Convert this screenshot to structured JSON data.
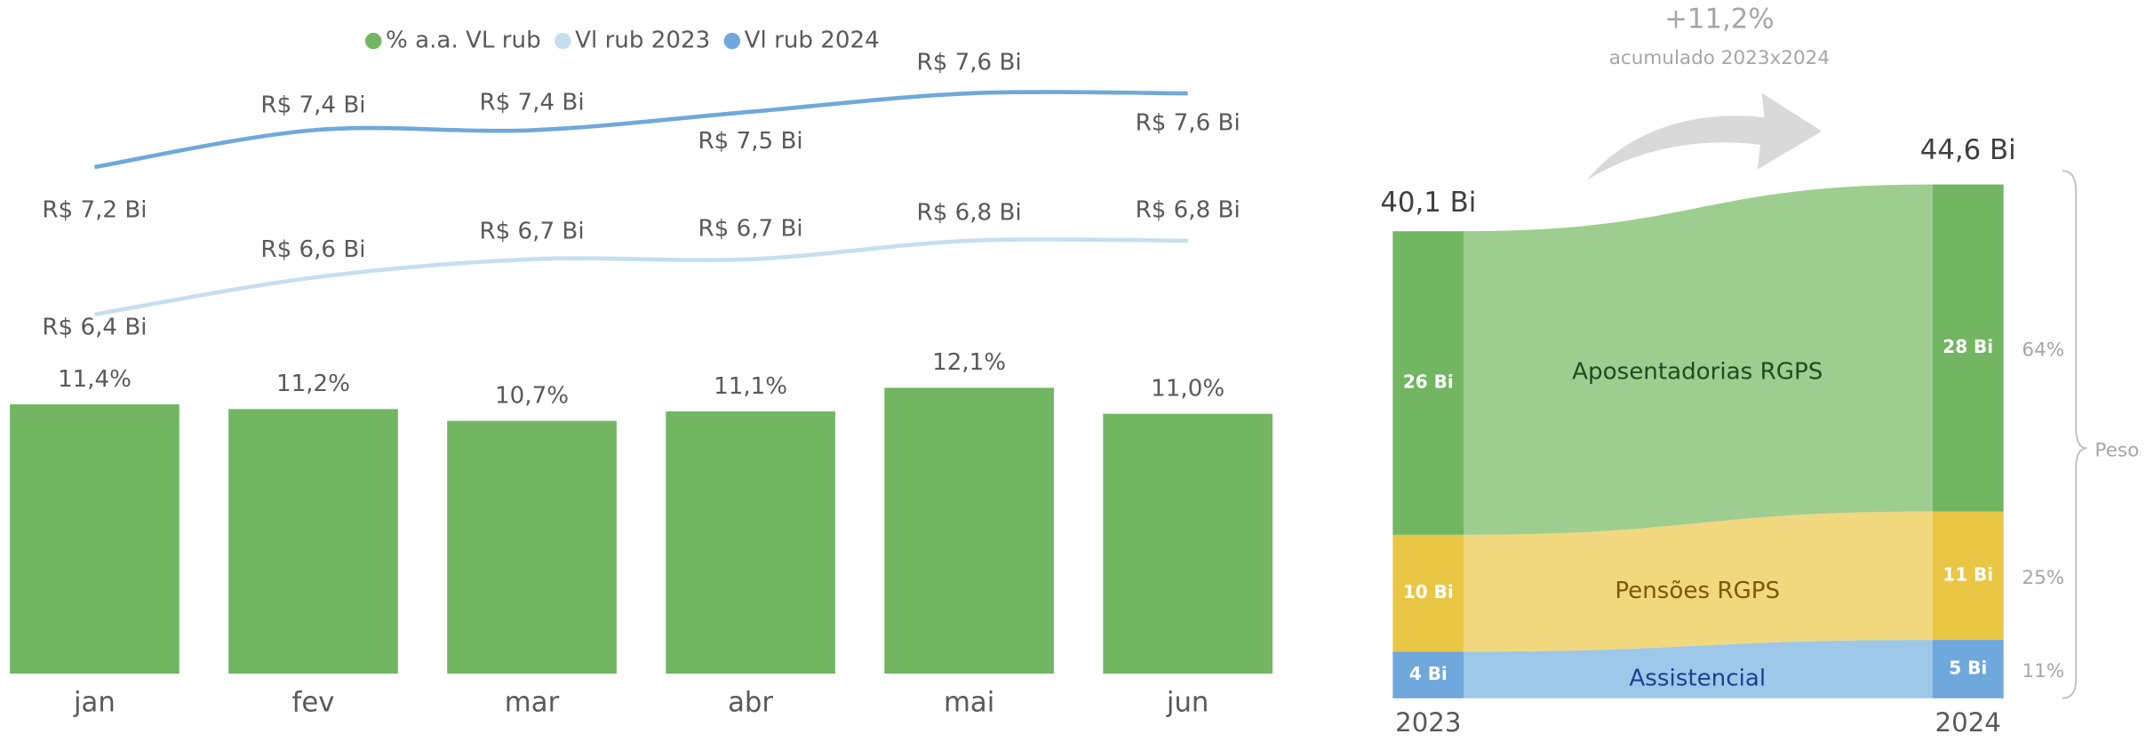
{
  "chart_data": [
    {
      "type": "bar",
      "categories": [
        "jan",
        "fev",
        "mar",
        "abr",
        "mai",
        "jun"
      ],
      "ylim": [
        0,
        26.2
      ],
      "y2lim": [
        4.45,
        7.81
      ],
      "legend": "top",
      "series": [
        {
          "name": "% a.a. VL rub",
          "color": "#72b662",
          "values": [
            11.4,
            11.2,
            10.7,
            11.1,
            12.1,
            11.0
          ],
          "value_labels": [
            "11,4%",
            "11,2%",
            "10,7%",
            "11,1%",
            "12,1%",
            "11,0%"
          ]
        },
        {
          "name": "Vl rub 2023",
          "type": "line",
          "axis": "y2",
          "color": "#c5dff0",
          "values": [
            6.4,
            6.6,
            6.7,
            6.7,
            6.8,
            6.8
          ],
          "value_labels": [
            "R$ 6,4 Bi",
            "R$ 6,6 Bi",
            "R$ 6,7 Bi",
            "R$ 6,7 Bi",
            "R$ 6,8 Bi",
            "R$ 6,8 Bi"
          ]
        },
        {
          "name": "Vl rub 2024",
          "type": "line",
          "axis": "y2",
          "color": "#6fa8dc",
          "values": [
            7.2,
            7.4,
            7.4,
            7.5,
            7.6,
            7.6
          ],
          "value_labels": [
            "R$ 7,2 Bi",
            "R$ 7,4 Bi",
            "R$ 7,4 Bi",
            "R$ 7,5 Bi",
            "R$ 7,6 Bi",
            "R$ 7,6 Bi"
          ]
        }
      ]
    },
    {
      "type": "sankey",
      "categories": [
        "2023",
        "2024"
      ],
      "totals": [
        40.1,
        44.6
      ],
      "total_labels": [
        "40,1 Bi",
        "44,6 Bi"
      ],
      "ylim": [
        0,
        59.8
      ],
      "growth": {
        "value": 11.2,
        "label": "+11,2%"
      },
      "growth_note": "acumulado 2023x2024",
      "share_title": "Peso",
      "series": [
        {
          "name": "Assistencial",
          "color": "#6fa8dc",
          "flow_color": "#9ec8ea",
          "text_color": "#1f3f8f",
          "values": [
            4,
            5
          ],
          "value_labels": [
            "4 Bi",
            "5 Bi"
          ],
          "share": 11,
          "share_label": "11%"
        },
        {
          "name": "Pensões RGPS",
          "color": "#eac645",
          "flow_color": "#f1d77e",
          "text_color": "#7a5a00",
          "values": [
            10,
            11
          ],
          "value_labels": [
            "10 Bi",
            "11 Bi"
          ],
          "share": 25,
          "share_label": "25%"
        },
        {
          "name": "Aposentadorias RGPS",
          "color": "#72b662",
          "flow_color": "#9dce8f",
          "text_color": "#1e4d1e",
          "values": [
            26,
            28
          ],
          "value_labels": [
            "26 Bi",
            "28 Bi"
          ],
          "share": 64,
          "share_label": "64%"
        }
      ]
    }
  ]
}
